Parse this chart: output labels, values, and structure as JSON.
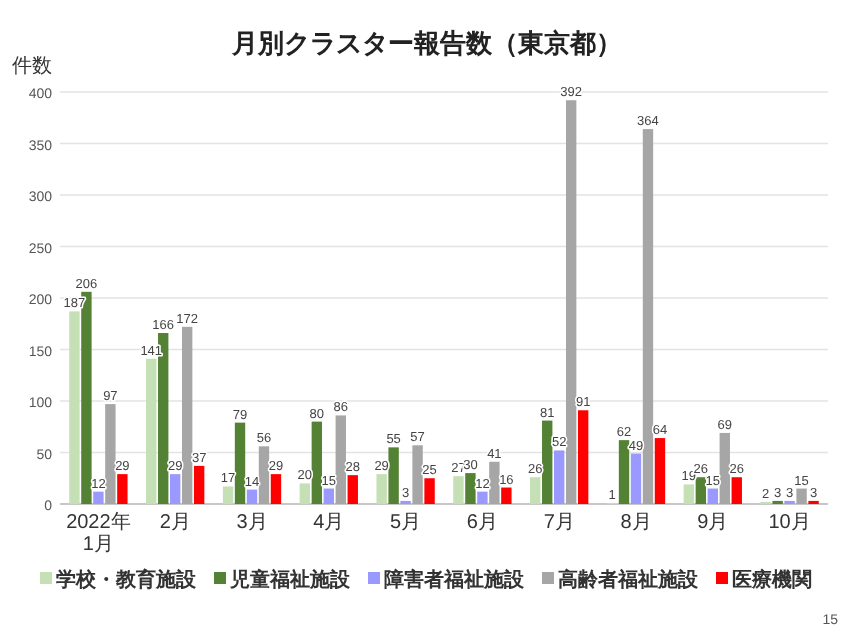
{
  "chart_data": {
    "type": "bar",
    "title": "月別クラスター報告数（東京都）",
    "ylabel": "件数",
    "categories": [
      "2022年1月",
      "2月",
      "3月",
      "4月",
      "5月",
      "6月",
      "7月",
      "8月",
      "9月",
      "10月"
    ],
    "series": [
      {
        "name": "学校・教育施設",
        "color": "#c5e0b4",
        "values": [
          187,
          141,
          17,
          20,
          29,
          27,
          26,
          1,
          19,
          2
        ]
      },
      {
        "name": "児童福祉施設",
        "color": "#548235",
        "values": [
          206,
          166,
          79,
          80,
          55,
          30,
          81,
          62,
          26,
          3
        ]
      },
      {
        "name": "障害者福祉施設",
        "color": "#9999ff",
        "values": [
          12,
          29,
          14,
          15,
          3,
          12,
          52,
          49,
          15,
          3
        ]
      },
      {
        "name": "高齢者福祉施設",
        "color": "#a6a6a6",
        "values": [
          97,
          172,
          56,
          86,
          57,
          41,
          392,
          364,
          69,
          15
        ]
      },
      {
        "name": "医療機関",
        "color": "#ff0000",
        "values": [
          29,
          37,
          29,
          28,
          25,
          16,
          91,
          64,
          26,
          3
        ]
      }
    ],
    "ylim": [
      0,
      400
    ],
    "yticks": [
      0,
      50,
      100,
      150,
      200,
      250,
      300,
      350,
      400
    ],
    "grid": "y",
    "legend": "bottom",
    "data_labels": true,
    "annotations": [
      "15"
    ]
  }
}
